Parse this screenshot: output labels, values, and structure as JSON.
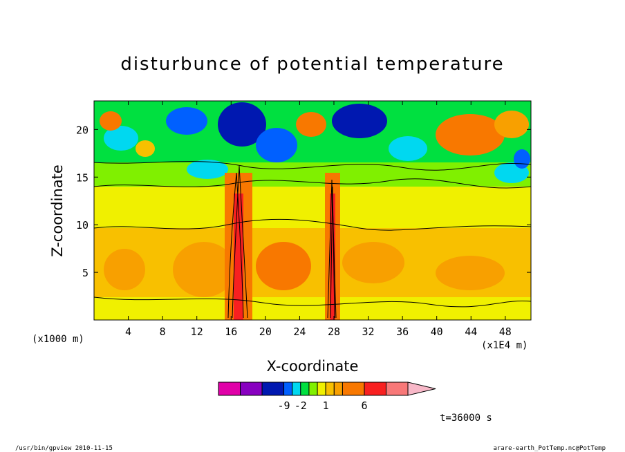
{
  "chart_data": {
    "type": "heatmap",
    "title": "disturbunce of potential temperature",
    "xlabel": "X-coordinate",
    "ylabel": "Z-coordinate",
    "x_unit_left": "(x1000 m)",
    "x_unit_right": "(x1E4 m)",
    "xlim": [
      0,
      51
    ],
    "ylim": [
      0,
      23
    ],
    "x_ticks": [
      4,
      8,
      12,
      16,
      20,
      24,
      28,
      32,
      36,
      40,
      44,
      48
    ],
    "y_ticks": [
      5,
      10,
      15,
      20
    ],
    "colorbar": {
      "colors": [
        "#e000a8",
        "#8800c0",
        "#0018b0",
        "#0060ff",
        "#00d8f0",
        "#00e040",
        "#80f000",
        "#f0f000",
        "#f8c000",
        "#f8a000",
        "#f87800",
        "#f82020",
        "#f87878",
        "#f8b8c8"
      ],
      "labels": [
        "-9",
        "-2",
        "1",
        "6"
      ]
    },
    "time_label": "t=36000 s",
    "footer_left": "/usr/bin/gpview  2010-11-15",
    "footer_right": "arare-earth_PotTemp.nc@PotTemp"
  }
}
